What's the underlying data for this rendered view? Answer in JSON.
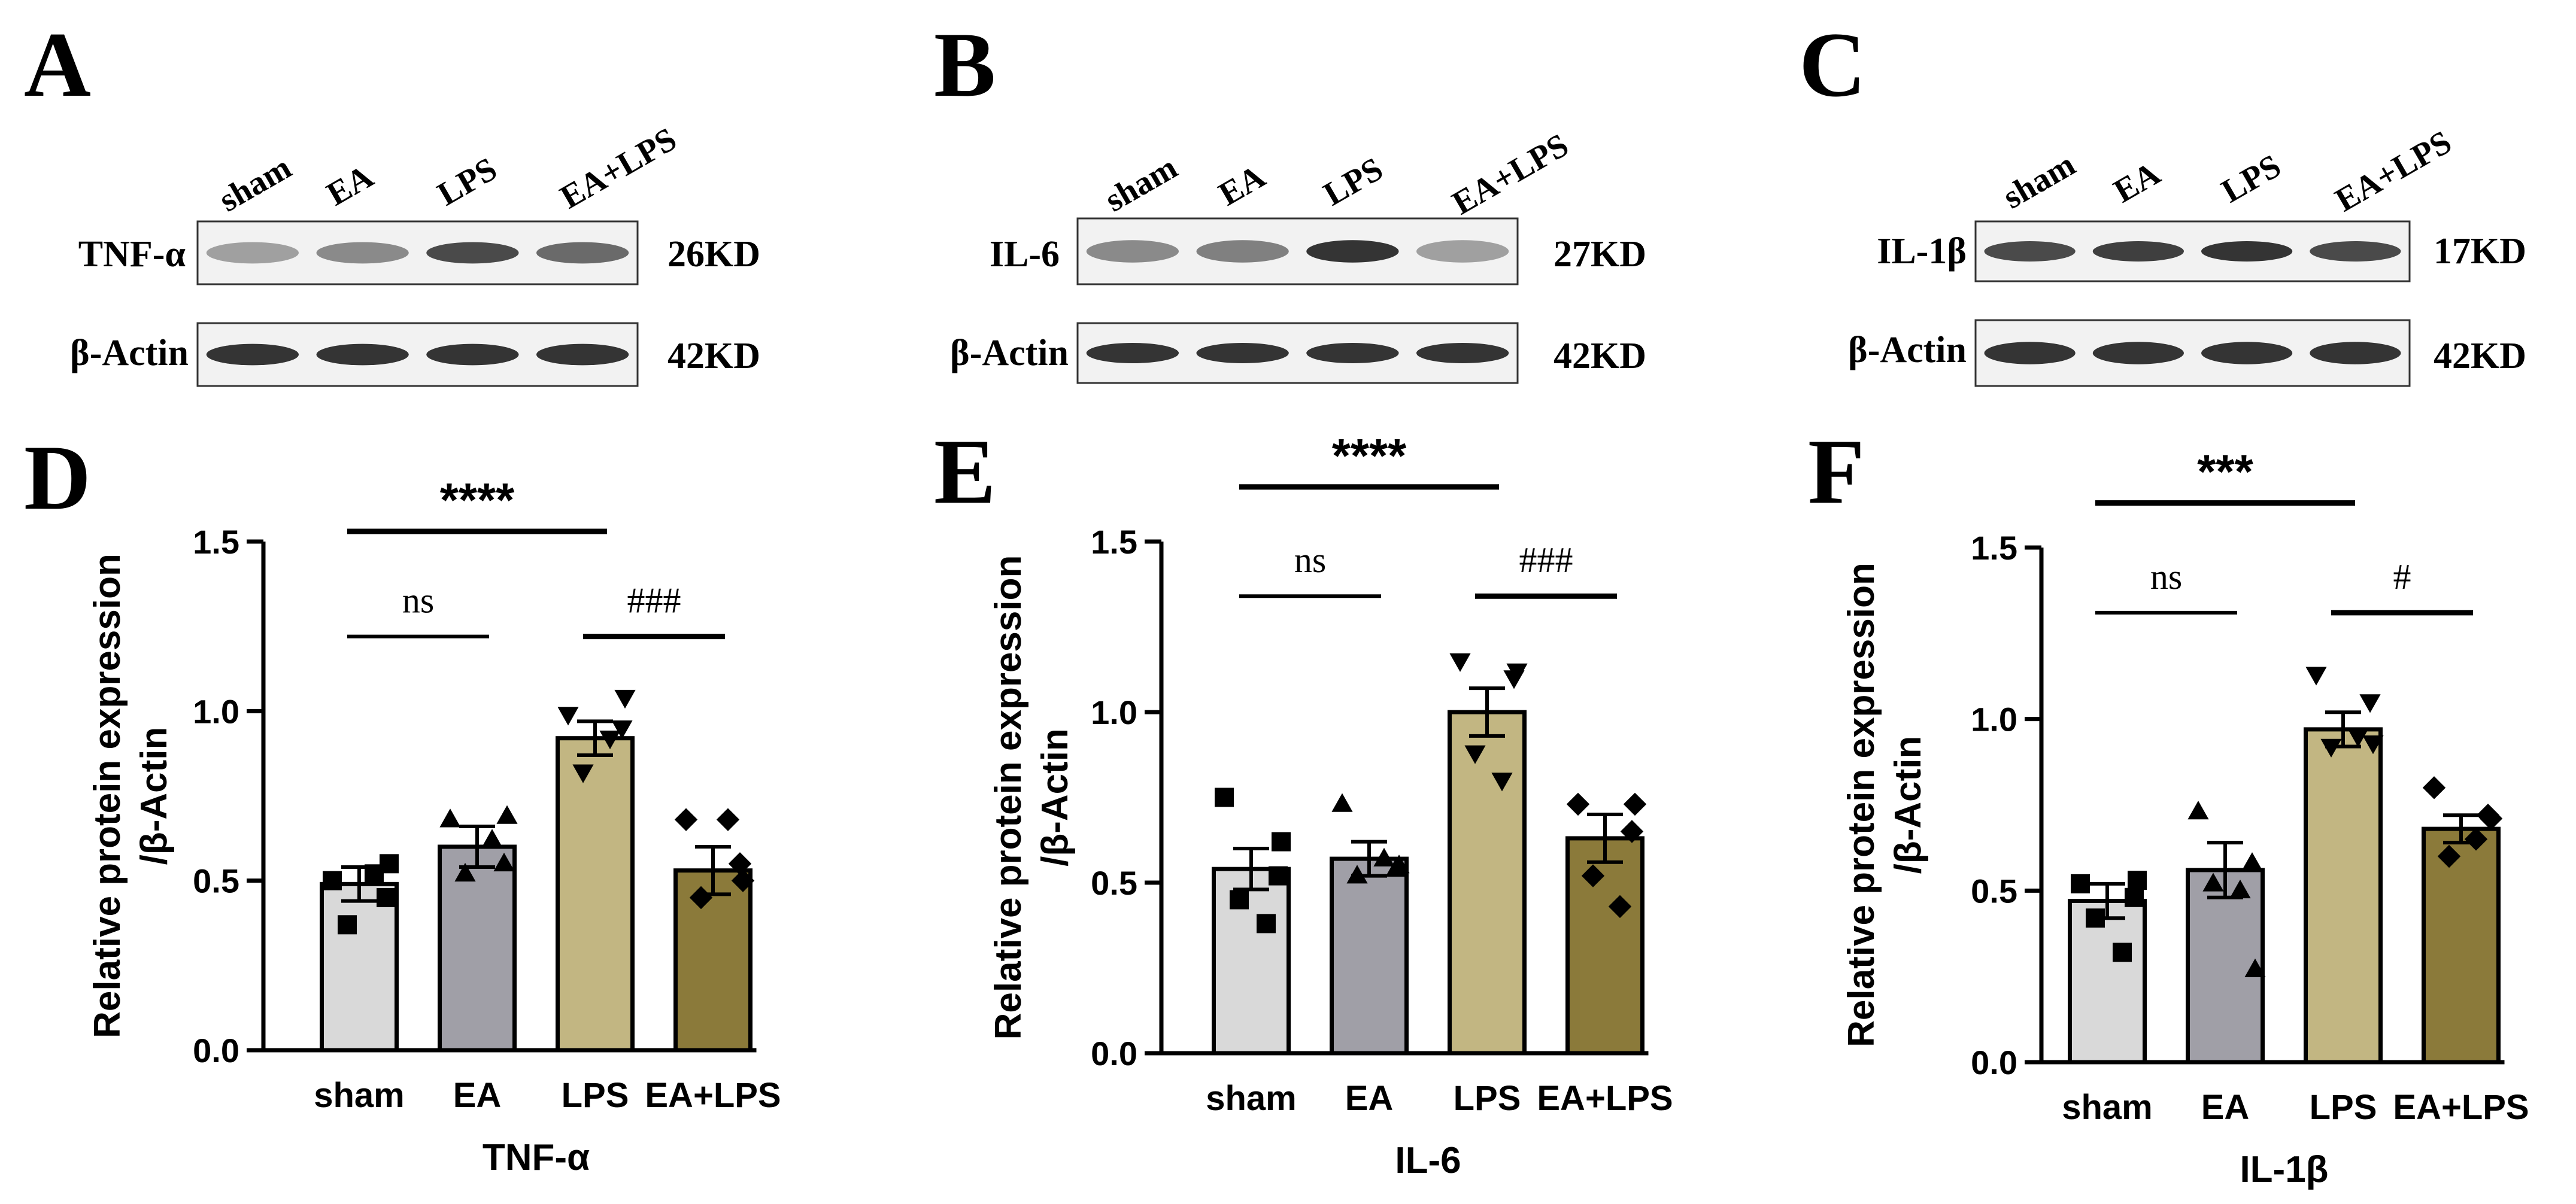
{
  "colors": {
    "sham": "#d9d9d9",
    "EA": "#a09fa7",
    "LPS": "#c2b682",
    "EA+LPS": "#8b7a3a",
    "ink": "#000000"
  },
  "blots": [
    {
      "panel_letter": "A",
      "lanes": [
        "sham",
        "EA",
        "LPS",
        "EA+LPS"
      ],
      "rows": [
        {
          "label": "TNF-α",
          "size": "26KD",
          "band_intensity": [
            0.35,
            0.45,
            0.75,
            0.6
          ]
        },
        {
          "label": "β-Actin",
          "size": "42KD",
          "band_intensity": [
            0.85,
            0.85,
            0.85,
            0.85
          ]
        }
      ]
    },
    {
      "panel_letter": "B",
      "lanes": [
        "sham",
        "EA",
        "LPS",
        "EA+LPS"
      ],
      "rows": [
        {
          "label": "IL-6",
          "size": "27KD",
          "band_intensity": [
            0.45,
            0.5,
            0.85,
            0.35
          ]
        },
        {
          "label": "β-Actin",
          "size": "42KD",
          "band_intensity": [
            0.85,
            0.85,
            0.85,
            0.85
          ]
        }
      ]
    },
    {
      "panel_letter": "C",
      "lanes": [
        "sham",
        "EA",
        "LPS",
        "EA+LPS"
      ],
      "rows": [
        {
          "label": "IL-1β",
          "size": "17KD",
          "band_intensity": [
            0.75,
            0.8,
            0.85,
            0.75
          ]
        },
        {
          "label": "β-Actin",
          "size": "42KD",
          "band_intensity": [
            0.85,
            0.85,
            0.85,
            0.85
          ]
        }
      ]
    }
  ],
  "chart_data": [
    {
      "type": "bar",
      "panel_letter": "D",
      "title": "",
      "xlabel": "TNF-α",
      "ylabel": "Relative protein expression /β-Actin",
      "ylim": [
        0,
        1.5
      ],
      "yticks": [
        "0.0",
        "0.5",
        "1.0",
        "1.5"
      ],
      "categories": [
        "sham",
        "EA",
        "LPS",
        "EA+LPS"
      ],
      "values": [
        0.49,
        0.6,
        0.92,
        0.53
      ],
      "errors": [
        0.05,
        0.06,
        0.05,
        0.07
      ],
      "points": [
        [
          0.5,
          0.45,
          0.37,
          0.52,
          0.55
        ],
        [
          0.68,
          0.55,
          0.52,
          0.62,
          0.69
        ],
        [
          0.99,
          0.95,
          0.82,
          0.92,
          1.04
        ],
        [
          0.68,
          0.55,
          0.45,
          0.68,
          0.5
        ]
      ],
      "marker_shapes": [
        "square",
        "triangle-up",
        "triangle-down",
        "diamond"
      ],
      "annotations": [
        {
          "text": "****",
          "from": 0,
          "to": 2,
          "level": 1.53
        },
        {
          "text": "ns",
          "from": 0,
          "to": 1,
          "level": 1.22
        },
        {
          "text": "###",
          "from": 2,
          "to": 3,
          "level": 1.22
        }
      ]
    },
    {
      "type": "bar",
      "panel_letter": "E",
      "title": "",
      "xlabel": "IL-6",
      "ylabel": "Relative protein expression /β-Actin",
      "ylim": [
        0,
        1.5
      ],
      "yticks": [
        "0.0",
        "0.5",
        "1.0",
        "1.5"
      ],
      "categories": [
        "sham",
        "EA",
        "LPS",
        "EA+LPS"
      ],
      "values": [
        0.54,
        0.57,
        1.0,
        0.63
      ],
      "errors": [
        0.06,
        0.05,
        0.07,
        0.07
      ],
      "points": [
        [
          0.75,
          0.52,
          0.45,
          0.38,
          0.62
        ],
        [
          0.73,
          0.54,
          0.52,
          0.57,
          0.55
        ],
        [
          1.15,
          1.1,
          0.88,
          0.8,
          1.12
        ],
        [
          0.73,
          0.65,
          0.52,
          0.43,
          0.73
        ]
      ],
      "marker_shapes": [
        "square",
        "triangle-up",
        "triangle-down",
        "diamond"
      ],
      "annotations": [
        {
          "text": "****",
          "from": 0,
          "to": 2,
          "level": 1.66
        },
        {
          "text": "ns",
          "from": 0,
          "to": 1,
          "level": 1.34
        },
        {
          "text": "###",
          "from": 2,
          "to": 3,
          "level": 1.34
        }
      ]
    },
    {
      "type": "bar",
      "panel_letter": "F",
      "title": "",
      "xlabel": "IL-1β",
      "ylabel": "Relative protein expression /β-Actin",
      "ylim": [
        0,
        1.5
      ],
      "yticks": [
        "0.0",
        "0.5",
        "1.0",
        "1.5"
      ],
      "categories": [
        "sham",
        "EA",
        "LPS",
        "EA+LPS"
      ],
      "values": [
        0.47,
        0.56,
        0.97,
        0.68
      ],
      "errors": [
        0.05,
        0.08,
        0.05,
        0.04
      ],
      "points": [
        [
          0.52,
          0.48,
          0.42,
          0.32,
          0.53
        ],
        [
          0.73,
          0.58,
          0.52,
          0.5,
          0.27
        ],
        [
          1.13,
          1.05,
          0.92,
          0.95,
          0.93
        ],
        [
          0.8,
          0.72,
          0.6,
          0.65,
          0.71
        ]
      ],
      "marker_shapes": [
        "square",
        "triangle-up",
        "triangle-down",
        "diamond"
      ],
      "annotations": [
        {
          "text": "***",
          "from": 0,
          "to": 2,
          "level": 1.63
        },
        {
          "text": "ns",
          "from": 0,
          "to": 1,
          "level": 1.31
        },
        {
          "text": "#",
          "from": 2,
          "to": 3,
          "level": 1.31
        }
      ]
    }
  ]
}
